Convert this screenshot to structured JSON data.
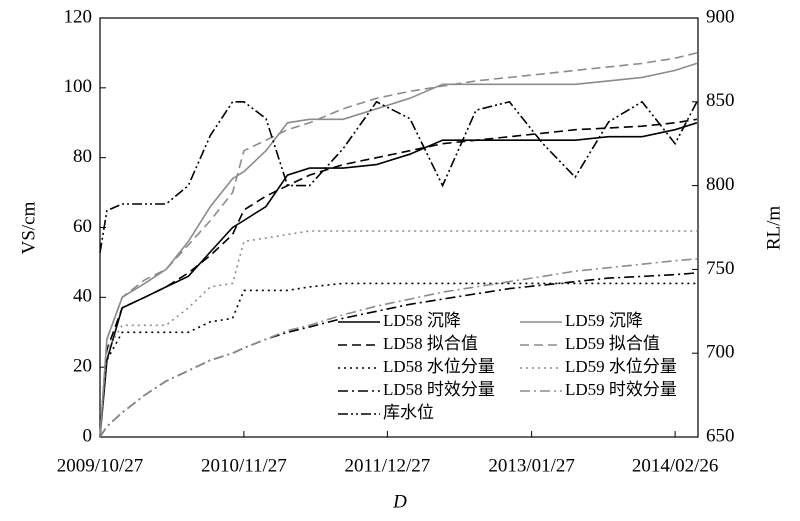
{
  "chart_data": {
    "type": "line",
    "ylabel": "VS/cm",
    "y2label": "RL/m",
    "xlabel": "D",
    "x": [
      "2009/10/27",
      "2009/11/15",
      "2009/12/27",
      "2010/02/27",
      "2010/04/27",
      "2010/06/27",
      "2010/08/27",
      "2010/10/27",
      "2010/11/27",
      "2011/01/27",
      "2011/03/27",
      "2011/05/27",
      "2011/08/27",
      "2011/11/27",
      "2012/02/27",
      "2012/05/27",
      "2012/08/27",
      "2012/11/27",
      "2013/02/27",
      "2013/05/27",
      "2013/08/27",
      "2013/11/27",
      "2014/02/26",
      "2014/04/27"
    ],
    "xlim": [
      "2009/10/27",
      "2014/04/30"
    ],
    "xticks": [
      "2009/10/27",
      "2010/11/27",
      "2011/12/27",
      "2013/01/27",
      "2014/02/26"
    ],
    "ylim": [
      0,
      120
    ],
    "yticks": [
      0,
      20,
      40,
      60,
      80,
      100,
      120
    ],
    "y2lim": [
      650,
      900
    ],
    "y2ticks": [
      650,
      700,
      750,
      800,
      850,
      900
    ],
    "series": [
      {
        "name": "LD58 沉降",
        "color": "#000000",
        "dash": "solid",
        "values": [
          0,
          22,
          37,
          40,
          43,
          46,
          53,
          60,
          62,
          66,
          75,
          77,
          77,
          78,
          81,
          85,
          85,
          85,
          85,
          85,
          86,
          86,
          88,
          90
        ]
      },
      {
        "name": "LD59 沉降",
        "color": "#8c8c8c",
        "dash": "solid",
        "values": [
          0,
          28,
          40,
          44,
          48,
          56,
          66,
          74,
          76,
          82,
          90,
          91,
          91,
          94,
          97,
          101,
          101,
          101,
          101,
          101,
          102,
          103,
          105,
          107
        ]
      },
      {
        "name": "LD58 拟合值",
        "color": "#000000",
        "dash": "dashed",
        "values": [
          0,
          25,
          37,
          40,
          43,
          47,
          52,
          58,
          65,
          69,
          72,
          75,
          78,
          80,
          82,
          84,
          85,
          86,
          87,
          88,
          88.5,
          89,
          90,
          91
        ]
      },
      {
        "name": "LD59 拟合值",
        "color": "#8c8c8c",
        "dash": "dashed",
        "values": [
          0,
          28,
          40,
          45,
          48,
          55,
          62,
          70,
          82,
          85,
          88,
          90,
          94,
          97,
          99,
          100.5,
          102,
          103,
          104,
          105,
          106,
          107,
          108.5,
          110
        ]
      },
      {
        "name": "LD58 水位分量",
        "color": "#000000",
        "dash": "dotted",
        "values": [
          0,
          22,
          30,
          30,
          30,
          30,
          33,
          34,
          42,
          42,
          42,
          43,
          44,
          44,
          44,
          44,
          44,
          44,
          44,
          44,
          44,
          44,
          44,
          44
        ]
      },
      {
        "name": "LD59 水位分量",
        "color": "#8c8c8c",
        "dash": "dotted",
        "values": [
          0,
          25,
          32,
          32,
          32,
          37,
          43,
          44,
          56,
          57,
          58,
          59,
          59,
          59,
          59,
          59,
          59,
          59,
          59,
          59,
          59,
          59,
          59,
          59
        ]
      },
      {
        "name": "LD58 时效分量",
        "color": "#000000",
        "dash": "dashdot",
        "values": [
          0,
          3,
          7,
          12,
          16,
          19,
          22,
          24,
          25.5,
          28,
          30,
          31.5,
          34,
          36,
          38,
          39.5,
          41,
          42.5,
          43.5,
          44.5,
          45.5,
          46,
          46.5,
          47
        ]
      },
      {
        "name": "LD59 时效分量",
        "color": "#8c8c8c",
        "dash": "dashdot",
        "values": [
          0,
          3,
          7,
          12,
          16,
          19,
          22,
          24,
          25.5,
          28,
          30.5,
          32,
          35,
          37.5,
          39.5,
          41.5,
          43,
          44.5,
          46,
          47.5,
          48.5,
          49.5,
          50.5,
          51
        ]
      },
      {
        "name": "库水位",
        "color": "#000000",
        "dash": "dashdotdot",
        "axis": "y2",
        "values": [
          760,
          785,
          789,
          789,
          789,
          800,
          830,
          850,
          850,
          840,
          800,
          800,
          822,
          850,
          840,
          800,
          845,
          850,
          825,
          805,
          838,
          850,
          825,
          850
        ]
      }
    ]
  }
}
